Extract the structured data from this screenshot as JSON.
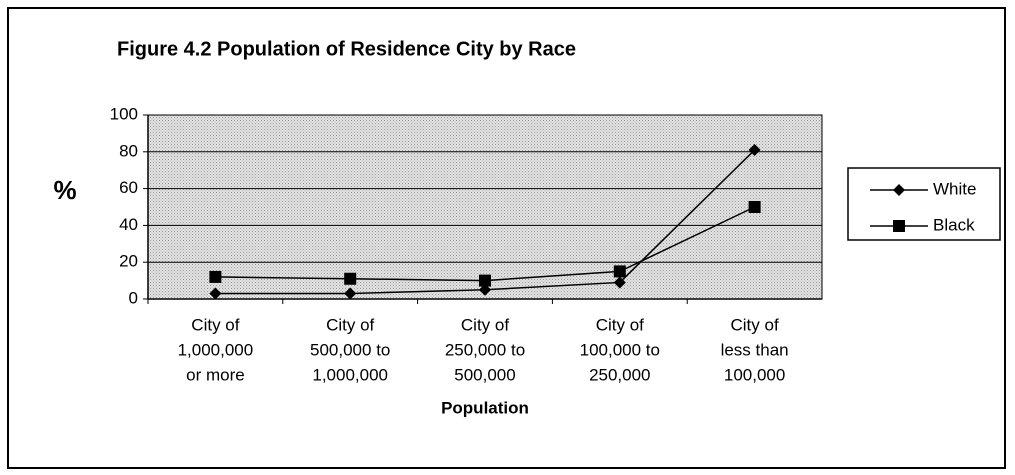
{
  "chart_data": {
    "type": "line",
    "title": "Figure 4.2  Population of Residence City by Race",
    "y_label": "%",
    "x_label": "Population",
    "categories": [
      [
        "City of",
        "1,000,000",
        "or more"
      ],
      [
        "City of",
        "500,000 to",
        "1,000,000"
      ],
      [
        "City of",
        "250,000 to",
        "500,000"
      ],
      [
        "City of",
        "100,000 to",
        "250,000"
      ],
      [
        "City of",
        "less than",
        "100,000"
      ]
    ],
    "series": [
      {
        "name": "White",
        "color": "#000000",
        "marker": "diamond",
        "values": [
          3,
          3,
          5,
          9,
          81
        ]
      },
      {
        "name": "Black",
        "color": "#000000",
        "marker": "square",
        "values": [
          12,
          11,
          10,
          15,
          50
        ]
      }
    ],
    "ylim": [
      0,
      100
    ],
    "yticks": [
      0,
      20,
      40,
      60,
      80,
      100
    ],
    "grid": true,
    "legend": "right"
  }
}
